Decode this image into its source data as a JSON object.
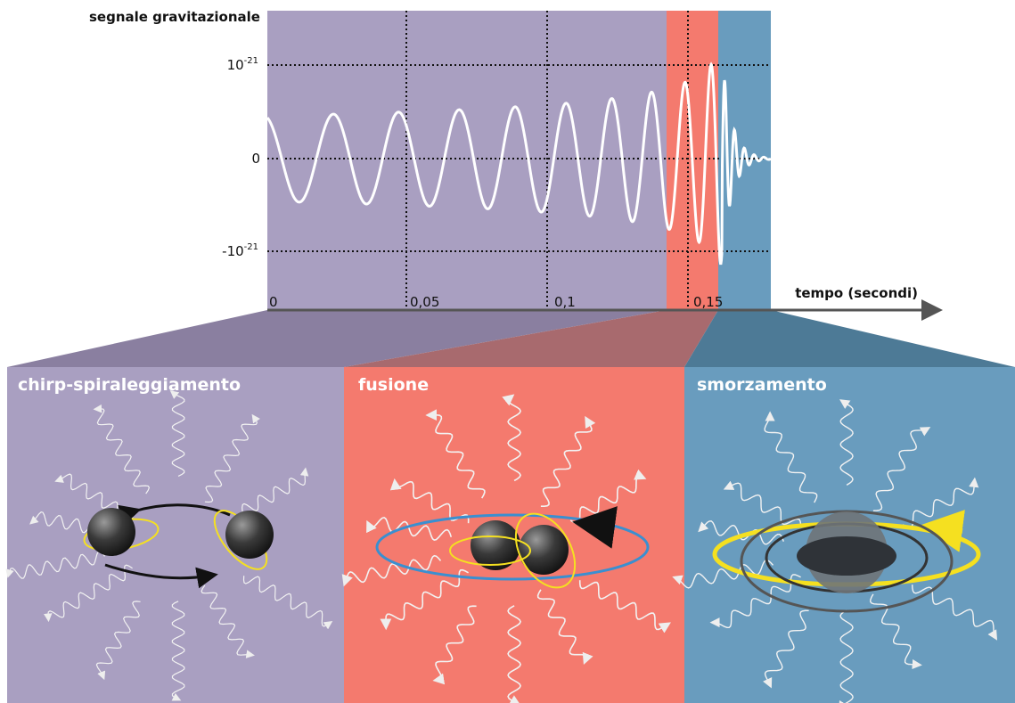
{
  "y_axis": {
    "title": "segnale gravitazionale",
    "ticks": [
      {
        "base": "10",
        "exponent": "-21"
      },
      "0",
      {
        "base": "-10",
        "exponent": "-21"
      }
    ]
  },
  "x_axis": {
    "title": "tempo (secondi)",
    "ticks": [
      "0",
      "0,05",
      "0,1",
      "0,15"
    ]
  },
  "panels": [
    {
      "title": "chirp-spiraleggiamento"
    },
    {
      "title": "fusione"
    },
    {
      "title": "smorzamento"
    }
  ]
}
